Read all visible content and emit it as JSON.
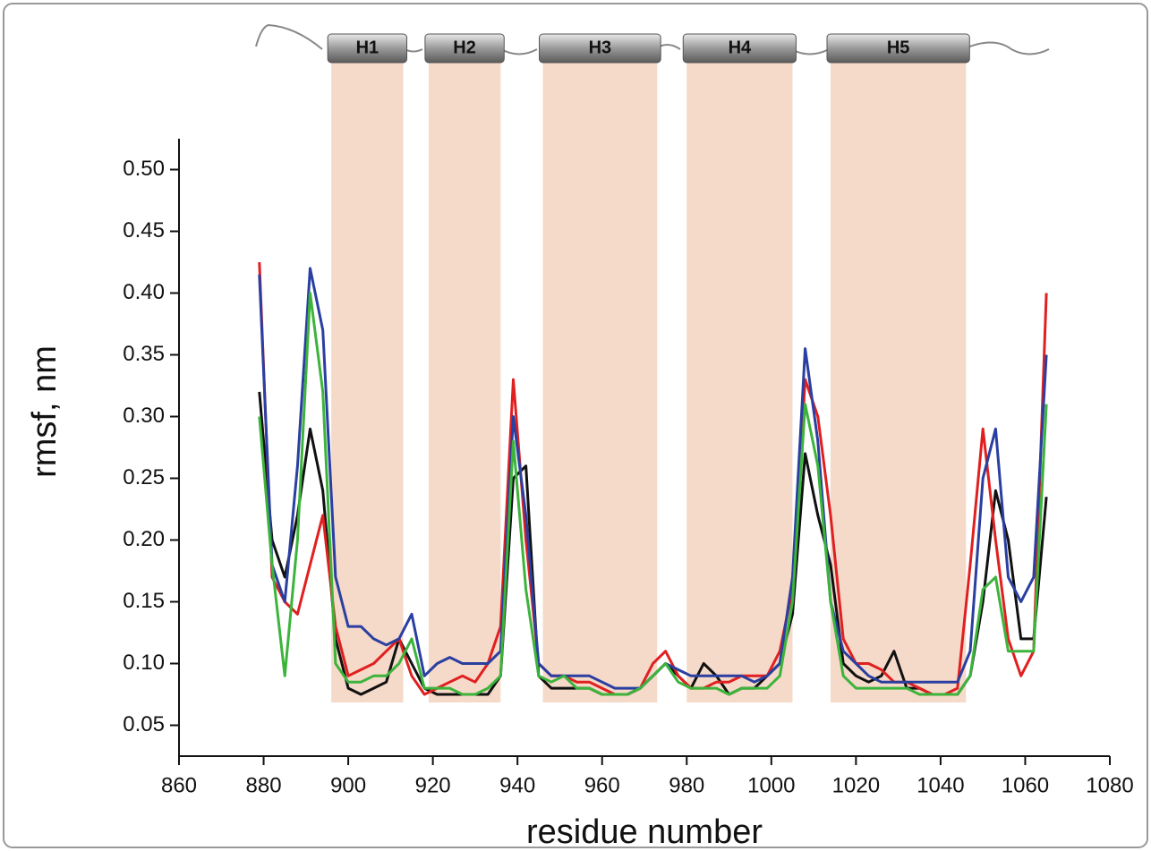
{
  "chart_data": {
    "type": "line",
    "x_label": "residue number",
    "y_label": "rmsf, nm",
    "x": [
      879,
      882,
      885,
      888,
      891,
      894,
      897,
      900,
      903,
      906,
      909,
      912,
      915,
      918,
      921,
      924,
      927,
      930,
      933,
      936,
      939,
      942,
      945,
      948,
      951,
      954,
      957,
      960,
      963,
      966,
      969,
      972,
      975,
      978,
      981,
      984,
      987,
      990,
      993,
      996,
      999,
      1002,
      1005,
      1008,
      1011,
      1014,
      1017,
      1020,
      1023,
      1026,
      1029,
      1032,
      1035,
      1038,
      1041,
      1044,
      1047,
      1050,
      1053,
      1056,
      1059,
      1062,
      1065
    ],
    "series": [
      {
        "color": "#111111",
        "values": [
          0.32,
          0.2,
          0.17,
          0.22,
          0.29,
          0.24,
          0.12,
          0.08,
          0.075,
          0.08,
          0.085,
          0.12,
          0.1,
          0.08,
          0.075,
          0.075,
          0.075,
          0.075,
          0.075,
          0.09,
          0.25,
          0.26,
          0.09,
          0.08,
          0.08,
          0.08,
          0.08,
          0.075,
          0.075,
          0.075,
          0.08,
          0.09,
          0.1,
          0.09,
          0.08,
          0.1,
          0.09,
          0.075,
          0.08,
          0.08,
          0.09,
          0.1,
          0.14,
          0.27,
          0.22,
          0.18,
          0.1,
          0.09,
          0.085,
          0.09,
          0.11,
          0.08,
          0.08,
          0.075,
          0.075,
          0.075,
          0.09,
          0.15,
          0.24,
          0.2,
          0.12,
          0.12,
          0.235
        ]
      },
      {
        "color": "#e02020",
        "values": [
          0.425,
          0.17,
          0.15,
          0.14,
          0.18,
          0.22,
          0.13,
          0.09,
          0.095,
          0.1,
          0.11,
          0.12,
          0.09,
          0.075,
          0.08,
          0.085,
          0.09,
          0.085,
          0.1,
          0.13,
          0.33,
          0.2,
          0.1,
          0.09,
          0.09,
          0.085,
          0.085,
          0.08,
          0.075,
          0.075,
          0.08,
          0.1,
          0.11,
          0.09,
          0.08,
          0.08,
          0.085,
          0.085,
          0.09,
          0.09,
          0.09,
          0.11,
          0.16,
          0.33,
          0.3,
          0.22,
          0.12,
          0.1,
          0.1,
          0.095,
          0.085,
          0.085,
          0.08,
          0.075,
          0.075,
          0.08,
          0.18,
          0.29,
          0.2,
          0.12,
          0.09,
          0.11,
          0.4
        ]
      },
      {
        "color": "#2a3fa0",
        "values": [
          0.415,
          0.18,
          0.15,
          0.26,
          0.42,
          0.37,
          0.17,
          0.13,
          0.13,
          0.12,
          0.115,
          0.12,
          0.14,
          0.09,
          0.1,
          0.105,
          0.1,
          0.1,
          0.1,
          0.11,
          0.3,
          0.22,
          0.1,
          0.09,
          0.09,
          0.09,
          0.09,
          0.085,
          0.08,
          0.08,
          0.08,
          0.09,
          0.1,
          0.095,
          0.09,
          0.09,
          0.09,
          0.09,
          0.09,
          0.085,
          0.09,
          0.1,
          0.17,
          0.355,
          0.28,
          0.15,
          0.11,
          0.1,
          0.09,
          0.085,
          0.085,
          0.085,
          0.085,
          0.085,
          0.085,
          0.085,
          0.11,
          0.25,
          0.29,
          0.17,
          0.15,
          0.17,
          0.35
        ]
      },
      {
        "color": "#3cb43c",
        "values": [
          0.3,
          0.18,
          0.09,
          0.2,
          0.4,
          0.32,
          0.1,
          0.085,
          0.085,
          0.09,
          0.09,
          0.1,
          0.12,
          0.08,
          0.08,
          0.08,
          0.075,
          0.075,
          0.08,
          0.09,
          0.28,
          0.16,
          0.09,
          0.085,
          0.09,
          0.08,
          0.08,
          0.075,
          0.075,
          0.075,
          0.08,
          0.09,
          0.1,
          0.085,
          0.08,
          0.08,
          0.08,
          0.075,
          0.08,
          0.08,
          0.08,
          0.09,
          0.15,
          0.31,
          0.26,
          0.15,
          0.09,
          0.08,
          0.08,
          0.08,
          0.08,
          0.08,
          0.075,
          0.075,
          0.075,
          0.075,
          0.09,
          0.16,
          0.17,
          0.11,
          0.11,
          0.11,
          0.31
        ]
      }
    ],
    "regions": [
      {
        "label": "H1",
        "start": 896,
        "end": 913
      },
      {
        "label": "H2",
        "start": 919,
        "end": 936
      },
      {
        "label": "H3",
        "start": 946,
        "end": 973
      },
      {
        "label": "H4",
        "start": 980,
        "end": 1005
      },
      {
        "label": "H5",
        "start": 1014,
        "end": 1046
      }
    ],
    "region_color": "#f5d9c9",
    "xlim": [
      860,
      1080
    ],
    "xticks": [
      860,
      880,
      900,
      920,
      940,
      960,
      980,
      1000,
      1020,
      1040,
      1060,
      1080
    ],
    "ylim": [
      0.025,
      0.525
    ],
    "yticks": [
      0.05,
      {
        "value": 0.1,
        "label": "0.10"
      },
      0.15,
      {
        "value": 0.2,
        "label": "0.20"
      },
      0.25,
      {
        "value": 0.3,
        "label": "0.30"
      },
      0.35,
      {
        "value": 0.4,
        "label": "0.40"
      },
      0.45,
      {
        "value": 0.5,
        "label": "0.50"
      }
    ]
  }
}
